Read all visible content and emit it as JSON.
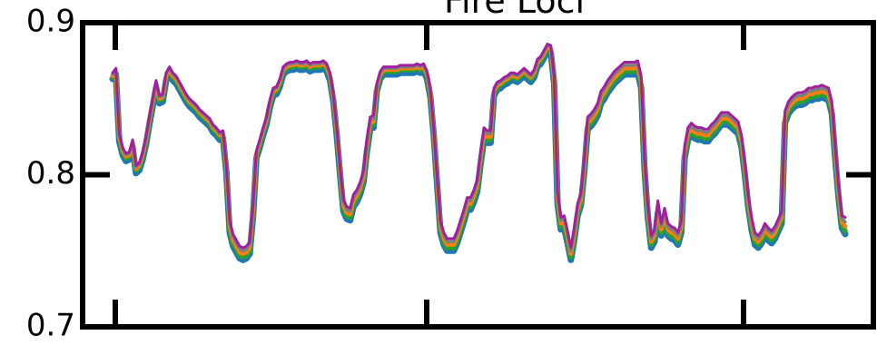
{
  "chart_data": {
    "type": "line",
    "title": "Fire Loci",
    "xlabel": "",
    "ylabel": "",
    "ylim": [
      0.7,
      0.9
    ],
    "yticks": [
      {
        "value": 0.9,
        "label": "0.9"
      },
      {
        "value": 0.8,
        "label": "0.8"
      },
      {
        "value": 0.7,
        "label": "0.7"
      }
    ],
    "x_tick_count": 3,
    "grid": false,
    "legend": "none",
    "colors": [
      "#1f77b4",
      "#2ca02c",
      "#ff7f0e",
      "#7f7f7f",
      "#9467bd",
      "#d62728",
      "#bcbd22",
      "#e377c2"
    ],
    "series": [
      {
        "values": [
          0.863,
          0.866,
          0.822,
          0.813,
          0.809,
          0.81,
          0.818,
          0.801,
          0.803,
          0.81,
          0.82,
          0.833,
          0.845,
          0.857,
          0.847,
          0.848,
          0.862,
          0.866,
          0.862,
          0.86,
          0.856,
          0.852,
          0.848,
          0.845,
          0.843,
          0.841,
          0.838,
          0.836,
          0.834,
          0.832,
          0.828,
          0.826,
          0.823,
          0.824,
          0.802,
          0.762,
          0.753,
          0.749,
          0.745,
          0.744,
          0.745,
          0.748,
          0.773,
          0.811,
          0.818,
          0.826,
          0.833,
          0.844,
          0.852,
          0.853,
          0.858,
          0.866,
          0.868,
          0.869,
          0.869,
          0.87,
          0.869,
          0.869,
          0.87,
          0.868,
          0.869,
          0.869,
          0.869,
          0.87,
          0.868,
          0.862,
          0.848,
          0.826,
          0.8,
          0.776,
          0.771,
          0.77,
          0.779,
          0.782,
          0.787,
          0.795,
          0.815,
          0.83,
          0.831,
          0.855,
          0.863,
          0.866,
          0.866,
          0.866,
          0.866,
          0.866,
          0.867,
          0.867,
          0.867,
          0.867,
          0.867,
          0.868,
          0.867,
          0.868,
          0.863,
          0.851,
          0.826,
          0.794,
          0.762,
          0.754,
          0.75,
          0.75,
          0.75,
          0.755,
          0.762,
          0.769,
          0.777,
          0.777,
          0.782,
          0.789,
          0.807,
          0.823,
          0.821,
          0.821,
          0.852,
          0.856,
          0.857,
          0.859,
          0.86,
          0.862,
          0.862,
          0.861,
          0.863,
          0.865,
          0.863,
          0.861,
          0.864,
          0.871,
          0.873,
          0.877,
          0.881,
          0.88,
          0.86,
          0.781,
          0.764,
          0.765,
          0.755,
          0.744,
          0.757,
          0.773,
          0.78,
          0.802,
          0.83,
          0.832,
          0.835,
          0.839,
          0.847,
          0.85,
          0.854,
          0.857,
          0.86,
          0.862,
          0.864,
          0.866,
          0.866,
          0.866,
          0.866,
          0.867,
          0.857,
          0.804,
          0.772,
          0.752,
          0.756,
          0.775,
          0.76,
          0.77,
          0.76,
          0.758,
          0.757,
          0.754,
          0.762,
          0.811,
          0.823,
          0.826,
          0.824,
          0.823,
          0.823,
          0.822,
          0.822,
          0.825,
          0.827,
          0.83,
          0.833,
          0.833,
          0.833,
          0.831,
          0.829,
          0.827,
          0.818,
          0.8,
          0.779,
          0.764,
          0.754,
          0.752,
          0.755,
          0.76,
          0.757,
          0.755,
          0.758,
          0.763,
          0.768,
          0.834,
          0.84,
          0.843,
          0.845,
          0.846,
          0.846,
          0.847,
          0.849,
          0.849,
          0.85,
          0.85,
          0.851,
          0.85,
          0.849,
          0.84,
          0.811,
          0.785,
          0.765,
          0.761
        ]
      },
      {
        "values": [
          0.864,
          0.867,
          0.824,
          0.815,
          0.811,
          0.812,
          0.82,
          0.803,
          0.805,
          0.812,
          0.822,
          0.835,
          0.847,
          0.859,
          0.849,
          0.85,
          0.864,
          0.868,
          0.864,
          0.862,
          0.858,
          0.854,
          0.85,
          0.847,
          0.845,
          0.843,
          0.84,
          0.838,
          0.836,
          0.834,
          0.83,
          0.828,
          0.825,
          0.826,
          0.804,
          0.764,
          0.755,
          0.751,
          0.747,
          0.746,
          0.747,
          0.75,
          0.775,
          0.813,
          0.82,
          0.828,
          0.835,
          0.846,
          0.854,
          0.855,
          0.86,
          0.868,
          0.87,
          0.871,
          0.871,
          0.872,
          0.871,
          0.871,
          0.872,
          0.87,
          0.871,
          0.871,
          0.871,
          0.872,
          0.87,
          0.864,
          0.85,
          0.828,
          0.802,
          0.778,
          0.773,
          0.772,
          0.781,
          0.784,
          0.789,
          0.797,
          0.817,
          0.832,
          0.833,
          0.857,
          0.865,
          0.868,
          0.868,
          0.868,
          0.868,
          0.868,
          0.869,
          0.869,
          0.869,
          0.869,
          0.869,
          0.87,
          0.869,
          0.87,
          0.865,
          0.853,
          0.828,
          0.796,
          0.764,
          0.756,
          0.752,
          0.752,
          0.752,
          0.757,
          0.764,
          0.771,
          0.779,
          0.779,
          0.784,
          0.791,
          0.809,
          0.825,
          0.823,
          0.823,
          0.854,
          0.858,
          0.859,
          0.861,
          0.862,
          0.864,
          0.864,
          0.863,
          0.865,
          0.867,
          0.865,
          0.863,
          0.866,
          0.873,
          0.875,
          0.879,
          0.883,
          0.882,
          0.862,
          0.783,
          0.766,
          0.767,
          0.757,
          0.746,
          0.759,
          0.775,
          0.782,
          0.804,
          0.832,
          0.834,
          0.837,
          0.841,
          0.849,
          0.852,
          0.856,
          0.859,
          0.862,
          0.864,
          0.866,
          0.868,
          0.868,
          0.868,
          0.868,
          0.869,
          0.859,
          0.806,
          0.774,
          0.754,
          0.758,
          0.777,
          0.762,
          0.772,
          0.762,
          0.76,
          0.759,
          0.756,
          0.764,
          0.813,
          0.825,
          0.828,
          0.826,
          0.825,
          0.825,
          0.824,
          0.824,
          0.827,
          0.829,
          0.832,
          0.835,
          0.835,
          0.835,
          0.833,
          0.831,
          0.829,
          0.82,
          0.802,
          0.781,
          0.766,
          0.756,
          0.754,
          0.757,
          0.762,
          0.759,
          0.757,
          0.76,
          0.765,
          0.77,
          0.836,
          0.842,
          0.845,
          0.847,
          0.848,
          0.848,
          0.849,
          0.851,
          0.851,
          0.852,
          0.852,
          0.853,
          0.852,
          0.851,
          0.842,
          0.813,
          0.787,
          0.767,
          0.763
        ]
      },
      {
        "values": [
          0.865,
          0.868,
          0.825,
          0.816,
          0.812,
          0.813,
          0.821,
          0.804,
          0.806,
          0.813,
          0.823,
          0.836,
          0.848,
          0.86,
          0.85,
          0.851,
          0.865,
          0.869,
          0.865,
          0.863,
          0.859,
          0.855,
          0.851,
          0.848,
          0.846,
          0.844,
          0.841,
          0.839,
          0.837,
          0.835,
          0.831,
          0.829,
          0.826,
          0.827,
          0.805,
          0.766,
          0.757,
          0.753,
          0.749,
          0.748,
          0.749,
          0.752,
          0.777,
          0.814,
          0.821,
          0.829,
          0.836,
          0.847,
          0.855,
          0.856,
          0.861,
          0.869,
          0.871,
          0.872,
          0.872,
          0.873,
          0.872,
          0.872,
          0.873,
          0.871,
          0.872,
          0.872,
          0.872,
          0.873,
          0.871,
          0.865,
          0.851,
          0.829,
          0.803,
          0.78,
          0.775,
          0.774,
          0.783,
          0.786,
          0.791,
          0.799,
          0.819,
          0.834,
          0.835,
          0.858,
          0.866,
          0.869,
          0.869,
          0.869,
          0.869,
          0.869,
          0.87,
          0.87,
          0.87,
          0.87,
          0.87,
          0.871,
          0.87,
          0.871,
          0.866,
          0.854,
          0.829,
          0.797,
          0.766,
          0.758,
          0.754,
          0.754,
          0.754,
          0.759,
          0.766,
          0.773,
          0.781,
          0.781,
          0.786,
          0.793,
          0.811,
          0.827,
          0.825,
          0.825,
          0.855,
          0.859,
          0.86,
          0.862,
          0.863,
          0.865,
          0.865,
          0.864,
          0.866,
          0.868,
          0.866,
          0.864,
          0.867,
          0.874,
          0.876,
          0.88,
          0.884,
          0.883,
          0.863,
          0.785,
          0.768,
          0.769,
          0.759,
          0.748,
          0.761,
          0.777,
          0.784,
          0.806,
          0.834,
          0.836,
          0.839,
          0.843,
          0.851,
          0.854,
          0.858,
          0.861,
          0.864,
          0.866,
          0.868,
          0.87,
          0.87,
          0.87,
          0.87,
          0.871,
          0.861,
          0.808,
          0.776,
          0.756,
          0.76,
          0.779,
          0.764,
          0.774,
          0.764,
          0.762,
          0.761,
          0.758,
          0.766,
          0.815,
          0.827,
          0.83,
          0.828,
          0.827,
          0.827,
          0.826,
          0.826,
          0.829,
          0.831,
          0.834,
          0.837,
          0.837,
          0.837,
          0.835,
          0.833,
          0.831,
          0.822,
          0.804,
          0.783,
          0.768,
          0.758,
          0.756,
          0.759,
          0.764,
          0.761,
          0.759,
          0.762,
          0.767,
          0.772,
          0.838,
          0.844,
          0.847,
          0.849,
          0.85,
          0.85,
          0.851,
          0.853,
          0.853,
          0.854,
          0.854,
          0.855,
          0.854,
          0.853,
          0.844,
          0.815,
          0.789,
          0.769,
          0.766
        ]
      },
      {
        "values": [
          0.866,
          0.869,
          0.826,
          0.817,
          0.813,
          0.814,
          0.822,
          0.805,
          0.807,
          0.814,
          0.824,
          0.837,
          0.849,
          0.861,
          0.851,
          0.852,
          0.866,
          0.87,
          0.866,
          0.864,
          0.86,
          0.856,
          0.852,
          0.849,
          0.847,
          0.845,
          0.842,
          0.84,
          0.838,
          0.836,
          0.832,
          0.83,
          0.827,
          0.828,
          0.806,
          0.768,
          0.759,
          0.755,
          0.751,
          0.75,
          0.751,
          0.754,
          0.779,
          0.815,
          0.822,
          0.83,
          0.837,
          0.848,
          0.856,
          0.857,
          0.862,
          0.87,
          0.872,
          0.873,
          0.873,
          0.874,
          0.873,
          0.873,
          0.874,
          0.872,
          0.873,
          0.873,
          0.873,
          0.874,
          0.872,
          0.866,
          0.852,
          0.83,
          0.804,
          0.782,
          0.777,
          0.776,
          0.785,
          0.788,
          0.793,
          0.801,
          0.821,
          0.836,
          0.837,
          0.859,
          0.867,
          0.87,
          0.87,
          0.87,
          0.87,
          0.87,
          0.871,
          0.871,
          0.871,
          0.871,
          0.871,
          0.872,
          0.871,
          0.872,
          0.867,
          0.855,
          0.83,
          0.798,
          0.768,
          0.76,
          0.756,
          0.756,
          0.756,
          0.761,
          0.768,
          0.775,
          0.783,
          0.783,
          0.788,
          0.795,
          0.813,
          0.829,
          0.827,
          0.827,
          0.856,
          0.86,
          0.861,
          0.863,
          0.864,
          0.866,
          0.866,
          0.865,
          0.867,
          0.869,
          0.867,
          0.865,
          0.868,
          0.875,
          0.877,
          0.881,
          0.885,
          0.884,
          0.864,
          0.787,
          0.77,
          0.771,
          0.761,
          0.75,
          0.763,
          0.779,
          0.786,
          0.808,
          0.836,
          0.838,
          0.841,
          0.845,
          0.853,
          0.856,
          0.86,
          0.863,
          0.866,
          0.868,
          0.87,
          0.872,
          0.872,
          0.872,
          0.872,
          0.873,
          0.863,
          0.81,
          0.778,
          0.758,
          0.762,
          0.781,
          0.766,
          0.776,
          0.766,
          0.764,
          0.763,
          0.76,
          0.768,
          0.817,
          0.829,
          0.832,
          0.83,
          0.829,
          0.829,
          0.828,
          0.828,
          0.831,
          0.833,
          0.836,
          0.839,
          0.839,
          0.839,
          0.837,
          0.835,
          0.833,
          0.824,
          0.806,
          0.785,
          0.77,
          0.76,
          0.758,
          0.761,
          0.766,
          0.763,
          0.761,
          0.764,
          0.769,
          0.774,
          0.84,
          0.846,
          0.849,
          0.851,
          0.852,
          0.852,
          0.853,
          0.855,
          0.855,
          0.856,
          0.856,
          0.857,
          0.856,
          0.855,
          0.846,
          0.817,
          0.791,
          0.771,
          0.769
        ]
      },
      {
        "values": [
          0.867,
          0.87,
          0.827,
          0.818,
          0.814,
          0.815,
          0.823,
          0.806,
          0.808,
          0.815,
          0.825,
          0.838,
          0.85,
          0.862,
          0.852,
          0.853,
          0.867,
          0.871,
          0.867,
          0.865,
          0.861,
          0.857,
          0.853,
          0.85,
          0.848,
          0.846,
          0.843,
          0.841,
          0.839,
          0.837,
          0.833,
          0.831,
          0.828,
          0.829,
          0.807,
          0.77,
          0.761,
          0.757,
          0.753,
          0.752,
          0.753,
          0.756,
          0.781,
          0.816,
          0.823,
          0.831,
          0.838,
          0.849,
          0.857,
          0.858,
          0.863,
          0.871,
          0.873,
          0.874,
          0.874,
          0.875,
          0.874,
          0.874,
          0.875,
          0.873,
          0.874,
          0.874,
          0.874,
          0.875,
          0.873,
          0.867,
          0.853,
          0.831,
          0.805,
          0.784,
          0.779,
          0.778,
          0.787,
          0.79,
          0.795,
          0.803,
          0.823,
          0.838,
          0.839,
          0.86,
          0.868,
          0.871,
          0.871,
          0.871,
          0.871,
          0.871,
          0.872,
          0.872,
          0.872,
          0.872,
          0.872,
          0.873,
          0.872,
          0.873,
          0.868,
          0.856,
          0.831,
          0.799,
          0.77,
          0.762,
          0.758,
          0.758,
          0.758,
          0.763,
          0.77,
          0.777,
          0.785,
          0.785,
          0.79,
          0.797,
          0.815,
          0.831,
          0.829,
          0.829,
          0.857,
          0.861,
          0.862,
          0.864,
          0.865,
          0.867,
          0.867,
          0.866,
          0.868,
          0.87,
          0.868,
          0.866,
          0.869,
          0.876,
          0.878,
          0.882,
          0.886,
          0.885,
          0.865,
          0.789,
          0.772,
          0.773,
          0.763,
          0.752,
          0.765,
          0.781,
          0.788,
          0.81,
          0.838,
          0.84,
          0.843,
          0.847,
          0.855,
          0.858,
          0.862,
          0.865,
          0.868,
          0.87,
          0.872,
          0.874,
          0.874,
          0.874,
          0.874,
          0.875,
          0.865,
          0.812,
          0.78,
          0.76,
          0.764,
          0.783,
          0.768,
          0.778,
          0.768,
          0.766,
          0.765,
          0.762,
          0.77,
          0.819,
          0.831,
          0.834,
          0.832,
          0.831,
          0.831,
          0.83,
          0.83,
          0.833,
          0.835,
          0.838,
          0.841,
          0.841,
          0.841,
          0.839,
          0.837,
          0.835,
          0.826,
          0.808,
          0.787,
          0.772,
          0.762,
          0.76,
          0.763,
          0.768,
          0.765,
          0.763,
          0.766,
          0.771,
          0.776,
          0.842,
          0.848,
          0.851,
          0.853,
          0.854,
          0.854,
          0.855,
          0.857,
          0.857,
          0.858,
          0.858,
          0.859,
          0.858,
          0.857,
          0.848,
          0.819,
          0.793,
          0.773,
          0.772
        ]
      }
    ]
  }
}
